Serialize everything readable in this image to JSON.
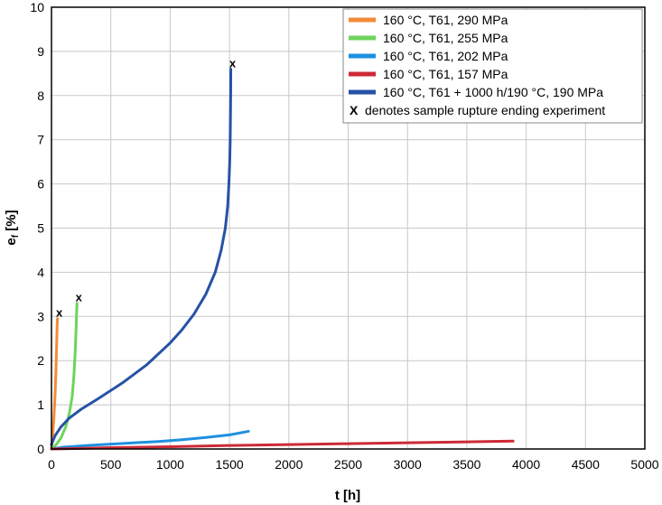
{
  "chart_data": {
    "type": "line",
    "xlabel": "t [h]",
    "ylabel_main": "e",
    "ylabel_sub": "f",
    "ylabel_unit": " [%]",
    "xlim": [
      0,
      5000
    ],
    "ylim": [
      0,
      10
    ],
    "xticks": [
      "0",
      "500",
      "1000",
      "1500",
      "2000",
      "2500",
      "3000",
      "3500",
      "4000",
      "4500",
      "5000"
    ],
    "yticks": [
      "0",
      "1",
      "2",
      "3",
      "4",
      "5",
      "6",
      "7",
      "8",
      "9",
      "10"
    ],
    "grid": true,
    "legend_position": "top-right",
    "legend_note": "denotes sample rupture ending experiment",
    "legend_note_marker": "X",
    "rupture_marker": "x",
    "series": [
      {
        "name": "160 °C, T61, 290 MPa",
        "color": "#f28c3a",
        "ruptured": true,
        "points": [
          [
            0,
            0
          ],
          [
            10,
            0.3
          ],
          [
            20,
            0.7
          ],
          [
            30,
            1.2
          ],
          [
            38,
            1.8
          ],
          [
            43,
            2.3
          ],
          [
            47,
            2.75
          ],
          [
            50,
            2.95
          ]
        ]
      },
      {
        "name": "160 °C, T61, 255 MPa",
        "color": "#6ed35c",
        "ruptured": true,
        "points": [
          [
            0,
            0
          ],
          [
            40,
            0.1
          ],
          [
            80,
            0.25
          ],
          [
            120,
            0.5
          ],
          [
            150,
            0.8
          ],
          [
            175,
            1.2
          ],
          [
            190,
            1.7
          ],
          [
            200,
            2.2
          ],
          [
            207,
            2.7
          ],
          [
            212,
            3.1
          ],
          [
            215,
            3.3
          ]
        ]
      },
      {
        "name": "160 °C, T61, 202 MPa",
        "color": "#1e90e0",
        "ruptured": false,
        "points": [
          [
            0,
            0
          ],
          [
            100,
            0.04
          ],
          [
            300,
            0.08
          ],
          [
            500,
            0.11
          ],
          [
            700,
            0.14
          ],
          [
            900,
            0.17
          ],
          [
            1100,
            0.21
          ],
          [
            1300,
            0.26
          ],
          [
            1500,
            0.32
          ],
          [
            1660,
            0.4
          ]
        ]
      },
      {
        "name": "160 °C, T61, 157 MPa",
        "color": "#cc2a36",
        "ruptured": false,
        "points": [
          [
            0,
            0
          ],
          [
            200,
            0.01
          ],
          [
            500,
            0.03
          ],
          [
            1000,
            0.05
          ],
          [
            1500,
            0.08
          ],
          [
            2000,
            0.1
          ],
          [
            2500,
            0.12
          ],
          [
            3000,
            0.14
          ],
          [
            3500,
            0.16
          ],
          [
            3890,
            0.18
          ]
        ]
      },
      {
        "name": "160 °C, T61 + 1000 h/190 °C, 190 MPa",
        "color": "#2552a6",
        "ruptured": true,
        "points": [
          [
            0,
            0.1
          ],
          [
            30,
            0.3
          ],
          [
            80,
            0.5
          ],
          [
            150,
            0.7
          ],
          [
            250,
            0.9
          ],
          [
            400,
            1.15
          ],
          [
            600,
            1.5
          ],
          [
            800,
            1.9
          ],
          [
            1000,
            2.4
          ],
          [
            1100,
            2.7
          ],
          [
            1200,
            3.05
          ],
          [
            1300,
            3.5
          ],
          [
            1380,
            4.0
          ],
          [
            1430,
            4.5
          ],
          [
            1465,
            5.0
          ],
          [
            1485,
            5.5
          ],
          [
            1495,
            6.0
          ],
          [
            1502,
            6.5
          ],
          [
            1506,
            7.0
          ],
          [
            1508,
            7.5
          ],
          [
            1510,
            8.0
          ],
          [
            1511,
            8.6
          ]
        ]
      }
    ]
  }
}
